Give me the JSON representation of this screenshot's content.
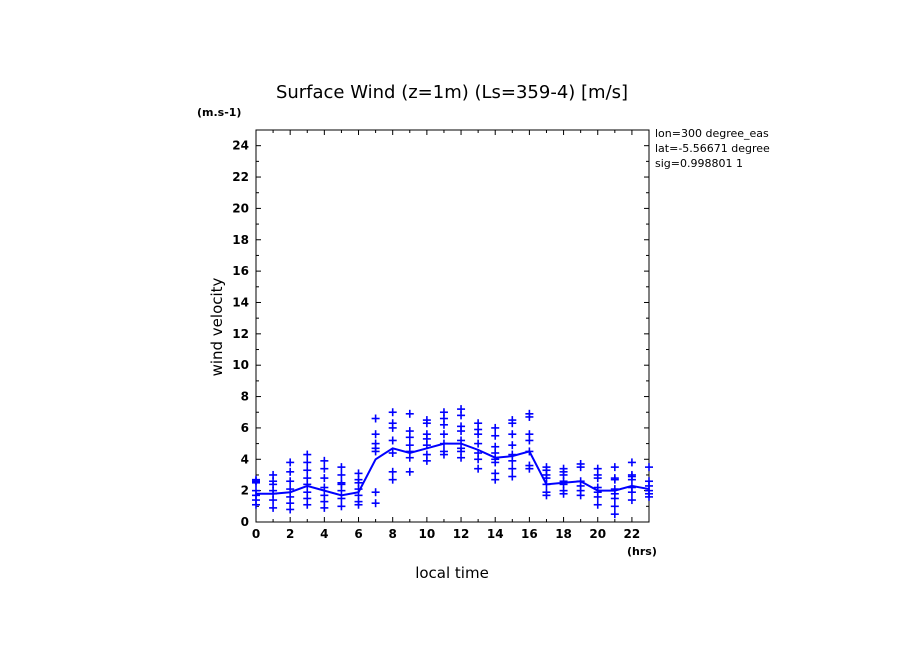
{
  "chart_data": {
    "type": "line",
    "title": "Surface Wind (z=1m) (Ls=359-4) [m/s]",
    "y_unit_label": "(m.s-1)",
    "x_unit_label": "(hrs)",
    "xlabel": "local time",
    "ylabel": "wind velocity",
    "xlim": [
      0,
      23
    ],
    "ylim": [
      0,
      25
    ],
    "x_ticks": [
      0,
      2,
      4,
      6,
      8,
      10,
      12,
      14,
      16,
      18,
      20,
      22
    ],
    "y_ticks": [
      0,
      2,
      4,
      6,
      8,
      10,
      12,
      14,
      16,
      18,
      20,
      22,
      24
    ],
    "info_lines": [
      "lon=300 degree_eas",
      "lat=-5.56671 degree",
      "sig=0.998801 1"
    ],
    "color": "#0000ff",
    "grid": false,
    "series": [
      {
        "kind": "line",
        "x": [
          0,
          1,
          2,
          3,
          4,
          5,
          6,
          7,
          8,
          9,
          10,
          11,
          12,
          13,
          14,
          15,
          16,
          17,
          18,
          19,
          20,
          21,
          22,
          23
        ],
        "values": [
          1.8,
          1.8,
          1.9,
          2.3,
          2.0,
          1.7,
          1.9,
          4.0,
          4.7,
          4.4,
          4.7,
          5.0,
          5.0,
          4.6,
          4.1,
          4.2,
          4.5,
          2.4,
          2.5,
          2.6,
          2.0,
          2.0,
          2.3,
          2.1
        ]
      },
      {
        "kind": "scatter",
        "marker": "+",
        "points": [
          [
            0,
            2.7
          ],
          [
            0,
            2.5
          ],
          [
            0,
            2.0
          ],
          [
            0,
            1.7
          ],
          [
            0,
            1.4
          ],
          [
            0,
            1.1
          ],
          [
            0,
            2.6
          ],
          [
            1,
            3.0
          ],
          [
            1,
            2.6
          ],
          [
            1,
            2.0
          ],
          [
            1,
            1.8
          ],
          [
            1,
            1.4
          ],
          [
            1,
            0.9
          ],
          [
            1,
            2.4
          ],
          [
            2,
            3.8
          ],
          [
            2,
            3.2
          ],
          [
            2,
            2.6
          ],
          [
            2,
            2.1
          ],
          [
            2,
            1.6
          ],
          [
            2,
            1.2
          ],
          [
            2,
            0.8
          ],
          [
            3,
            4.3
          ],
          [
            3,
            3.8
          ],
          [
            3,
            3.3
          ],
          [
            3,
            2.8
          ],
          [
            3,
            2.4
          ],
          [
            3,
            1.9
          ],
          [
            3,
            1.5
          ],
          [
            3,
            1.1
          ],
          [
            4,
            3.9
          ],
          [
            4,
            3.4
          ],
          [
            4,
            2.8
          ],
          [
            4,
            2.2
          ],
          [
            4,
            1.7
          ],
          [
            4,
            1.3
          ],
          [
            4,
            0.9
          ],
          [
            5,
            3.5
          ],
          [
            5,
            3.0
          ],
          [
            5,
            2.5
          ],
          [
            5,
            2.0
          ],
          [
            5,
            1.5
          ],
          [
            5,
            1.0
          ],
          [
            5,
            2.4
          ],
          [
            6,
            3.1
          ],
          [
            6,
            2.7
          ],
          [
            6,
            2.1
          ],
          [
            6,
            1.7
          ],
          [
            6,
            1.3
          ],
          [
            6,
            1.1
          ],
          [
            6,
            2.5
          ],
          [
            7,
            6.6
          ],
          [
            7,
            5.6
          ],
          [
            7,
            5.0
          ],
          [
            7,
            4.7
          ],
          [
            7,
            4.5
          ],
          [
            7,
            1.9
          ],
          [
            7,
            1.2
          ],
          [
            8,
            7.0
          ],
          [
            8,
            6.3
          ],
          [
            8,
            6.0
          ],
          [
            8,
            5.2
          ],
          [
            8,
            4.4
          ],
          [
            8,
            3.2
          ],
          [
            8,
            2.7
          ],
          [
            9,
            6.9
          ],
          [
            9,
            5.8
          ],
          [
            9,
            5.4
          ],
          [
            9,
            4.9
          ],
          [
            9,
            4.5
          ],
          [
            9,
            4.1
          ],
          [
            9,
            3.2
          ],
          [
            10,
            6.5
          ],
          [
            10,
            6.3
          ],
          [
            10,
            5.6
          ],
          [
            10,
            5.3
          ],
          [
            10,
            4.9
          ],
          [
            10,
            4.3
          ],
          [
            10,
            3.9
          ],
          [
            11,
            7.0
          ],
          [
            11,
            6.6
          ],
          [
            11,
            6.2
          ],
          [
            11,
            5.6
          ],
          [
            11,
            5.0
          ],
          [
            11,
            4.5
          ],
          [
            11,
            4.3
          ],
          [
            12,
            7.2
          ],
          [
            12,
            6.8
          ],
          [
            12,
            6.1
          ],
          [
            12,
            5.8
          ],
          [
            12,
            5.2
          ],
          [
            12,
            4.7
          ],
          [
            12,
            4.5
          ],
          [
            12,
            4.1
          ],
          [
            13,
            6.3
          ],
          [
            13,
            5.9
          ],
          [
            13,
            5.6
          ],
          [
            13,
            5.0
          ],
          [
            13,
            4.4
          ],
          [
            13,
            4.0
          ],
          [
            13,
            3.4
          ],
          [
            14,
            6.0
          ],
          [
            14,
            5.5
          ],
          [
            14,
            4.8
          ],
          [
            14,
            4.4
          ],
          [
            14,
            4.0
          ],
          [
            14,
            3.8
          ],
          [
            14,
            3.1
          ],
          [
            14,
            2.7
          ],
          [
            15,
            6.5
          ],
          [
            15,
            6.3
          ],
          [
            15,
            5.6
          ],
          [
            15,
            4.9
          ],
          [
            15,
            4.3
          ],
          [
            15,
            3.9
          ],
          [
            15,
            3.4
          ],
          [
            15,
            2.9
          ],
          [
            16,
            6.9
          ],
          [
            16,
            6.7
          ],
          [
            16,
            5.6
          ],
          [
            16,
            5.2
          ],
          [
            16,
            4.5
          ],
          [
            16,
            3.6
          ],
          [
            16,
            3.4
          ],
          [
            17,
            3.5
          ],
          [
            17,
            3.3
          ],
          [
            17,
            3.0
          ],
          [
            17,
            2.8
          ],
          [
            17,
            2.4
          ],
          [
            17,
            1.9
          ],
          [
            17,
            1.7
          ],
          [
            18,
            3.4
          ],
          [
            18,
            3.2
          ],
          [
            18,
            3.0
          ],
          [
            18,
            2.6
          ],
          [
            18,
            2.4
          ],
          [
            18,
            2.0
          ],
          [
            18,
            1.8
          ],
          [
            19,
            3.7
          ],
          [
            19,
            3.5
          ],
          [
            19,
            2.6
          ],
          [
            19,
            2.3
          ],
          [
            19,
            2.0
          ],
          [
            19,
            1.7
          ],
          [
            20,
            3.4
          ],
          [
            20,
            3.0
          ],
          [
            20,
            2.8
          ],
          [
            20,
            2.2
          ],
          [
            20,
            1.9
          ],
          [
            20,
            1.6
          ],
          [
            20,
            1.1
          ],
          [
            21,
            3.5
          ],
          [
            21,
            2.8
          ],
          [
            21,
            2.7
          ],
          [
            21,
            2.1
          ],
          [
            21,
            1.8
          ],
          [
            21,
            1.5
          ],
          [
            21,
            1.0
          ],
          [
            21,
            0.5
          ],
          [
            22,
            3.8
          ],
          [
            22,
            3.0
          ],
          [
            22,
            2.9
          ],
          [
            22,
            2.7
          ],
          [
            22,
            2.2
          ],
          [
            22,
            1.9
          ],
          [
            22,
            1.4
          ],
          [
            23,
            3.5
          ],
          [
            23,
            2.6
          ],
          [
            23,
            2.3
          ],
          [
            23,
            2.0
          ],
          [
            23,
            1.8
          ],
          [
            23,
            1.6
          ]
        ]
      }
    ]
  }
}
